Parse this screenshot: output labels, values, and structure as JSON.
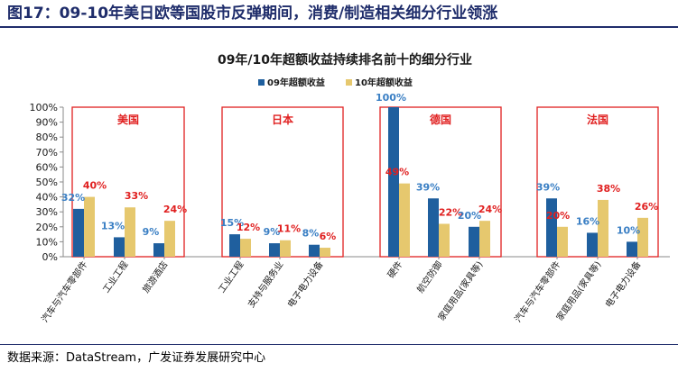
{
  "figure": {
    "title": "图17：09-10年美日欧等国股市反弹期间，消费/制造相关细分行业领涨",
    "source": "数据来源：DataStream，广发证券发展研究中心"
  },
  "colors": {
    "series_2009": "#1f5f9e",
    "series_2010": "#e6c86e",
    "label_2009": "#3a7fc4",
    "label_2010": "#e02020",
    "group_box": "#e02020",
    "group_name": "#e02020"
  },
  "chart_data": {
    "type": "bar",
    "title": "09年/10年超额收益持续排名前十的细分行业",
    "xlabel": "",
    "ylabel": "",
    "ylim": [
      0,
      100
    ],
    "yticks": [
      "0%",
      "10%",
      "20%",
      "30%",
      "40%",
      "50%",
      "60%",
      "70%",
      "80%",
      "90%",
      "100%"
    ],
    "legend_position": "top-center",
    "grid": false,
    "series": [
      {
        "name": "09年超额收益",
        "values": [
          32,
          13,
          9,
          15,
          9,
          8,
          100,
          39,
          20,
          39,
          16,
          10
        ]
      },
      {
        "name": "10年超额收益",
        "values": [
          40,
          33,
          24,
          12,
          11,
          6,
          49,
          22,
          24,
          20,
          38,
          26
        ]
      }
    ],
    "value_labels": {
      "series_2009": [
        "32%",
        "13%",
        "9%",
        "15%",
        "9%",
        "8%",
        "100%",
        "39%",
        "20%",
        "39%",
        "16%",
        "10%"
      ],
      "series_2010": [
        "40%",
        "33%",
        "24%",
        "12%",
        "11%",
        "6%",
        "49%",
        "22%",
        "24%",
        "20%",
        "38%",
        "26%"
      ]
    },
    "categories": [
      "汽车与汽车零部件",
      "工业工程",
      "旅游酒店",
      "工业工程",
      "支持与服务业",
      "电子电力设备",
      "硬件",
      "航空防御",
      "家庭用品(家具等)",
      "汽车与汽车零部件",
      "家庭用品(家具等)",
      "电子电力设备"
    ],
    "groups": [
      {
        "name": "美国",
        "start": 0,
        "count": 3
      },
      {
        "name": "日本",
        "start": 3,
        "count": 3
      },
      {
        "name": "德国",
        "start": 6,
        "count": 3
      },
      {
        "name": "法国",
        "start": 9,
        "count": 3
      }
    ]
  }
}
